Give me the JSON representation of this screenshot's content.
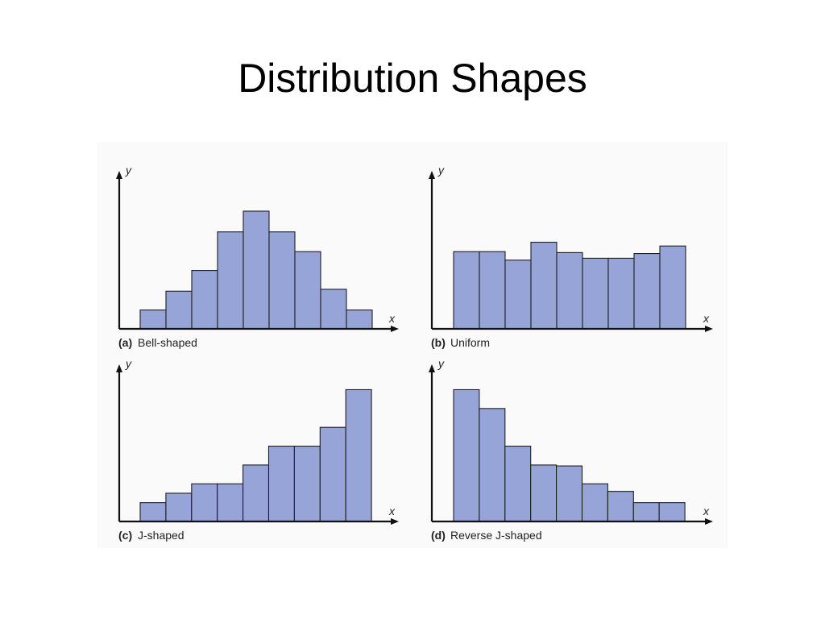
{
  "slide": {
    "title": "Distribution Shapes"
  },
  "colors": {
    "bar_fill": "#97a4d8",
    "bar_stroke": "#1f1f1f",
    "axis": "#111111"
  },
  "chart_data": [
    {
      "type": "bar",
      "id": "a",
      "caption_tag": "(a)",
      "caption": "Bell-shaped",
      "xlabel": "x",
      "ylabel": "y",
      "values": [
        1,
        2,
        3.1,
        5.15,
        6.25,
        5.15,
        4.1,
        2.1,
        1.0
      ],
      "ylim": [
        0,
        7.5
      ]
    },
    {
      "type": "bar",
      "id": "b",
      "caption_tag": "(b)",
      "caption": "Uniform",
      "xlabel": "x",
      "ylabel": "y",
      "values": [
        4.1,
        4.1,
        3.65,
        4.6,
        4.05,
        3.75,
        3.75,
        4.0,
        4.4
      ],
      "ylim": [
        0,
        7.5
      ]
    },
    {
      "type": "bar",
      "id": "c",
      "caption_tag": "(c)",
      "caption": "J-shaped",
      "xlabel": "x",
      "ylabel": "y",
      "values": [
        1.0,
        1.5,
        2.0,
        2.0,
        3.0,
        4.0,
        4.0,
        5.0,
        7.0
      ],
      "ylim": [
        0,
        7.5
      ]
    },
    {
      "type": "bar",
      "id": "d",
      "caption_tag": "(d)",
      "caption": "Reverse J-shaped",
      "xlabel": "x",
      "ylabel": "y",
      "values": [
        7.0,
        6.0,
        4.0,
        3.0,
        2.95,
        2.0,
        1.6,
        1.0,
        1.0
      ],
      "ylim": [
        0,
        7.5
      ]
    }
  ]
}
